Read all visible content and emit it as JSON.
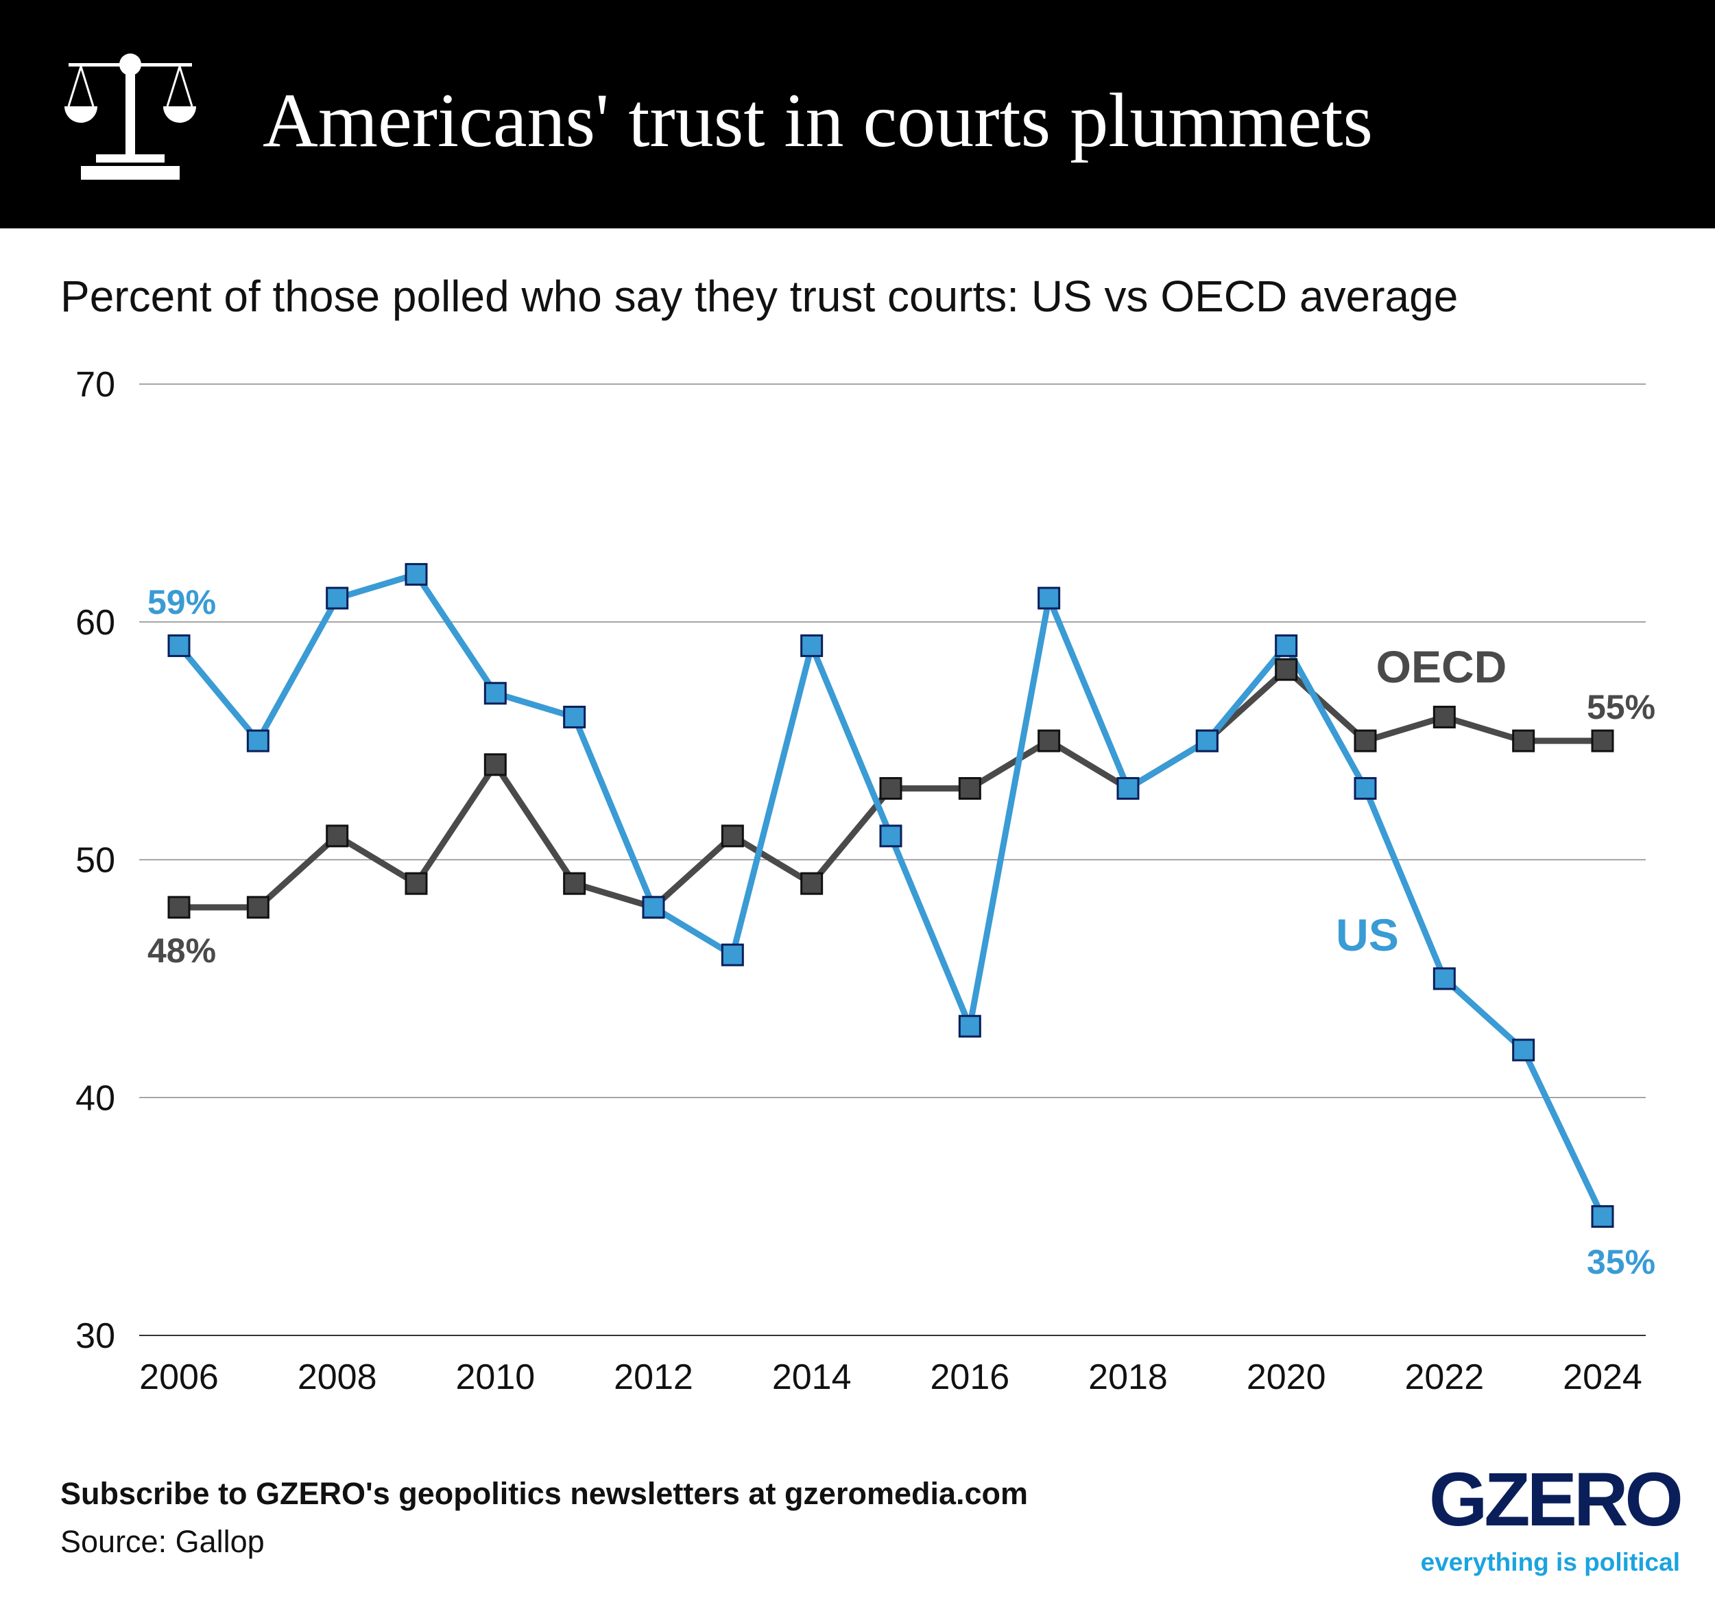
{
  "header": {
    "title": "Americans' trust in courts plummets",
    "icon": "scales-of-justice-icon"
  },
  "subtitle": "Percent of those polled who say they trust courts: US vs OECD average",
  "footer": {
    "subscribe": "Subscribe to GZERO's geopolitics newsletters at gzeromedia.com",
    "source": "Source: Gallop"
  },
  "logo": {
    "name": "GZERO",
    "tagline": "everything is political"
  },
  "chart_data": {
    "type": "line",
    "x": [
      2006,
      2007,
      2008,
      2009,
      2010,
      2011,
      2012,
      2013,
      2014,
      2015,
      2016,
      2017,
      2018,
      2019,
      2020,
      2021,
      2022,
      2023,
      2024
    ],
    "series": [
      {
        "name": "US",
        "color": "#3a9bd5",
        "values": [
          59,
          55,
          61,
          62,
          57,
          56,
          48,
          46,
          59,
          51,
          43,
          61,
          53,
          55,
          59,
          53,
          45,
          42,
          35
        ]
      },
      {
        "name": "OECD",
        "color": "#4a4a4a",
        "values": [
          48,
          48,
          51,
          49,
          54,
          49,
          48,
          51,
          49,
          53,
          53,
          55,
          53,
          55,
          58,
          55,
          56,
          55,
          55
        ]
      }
    ],
    "ylim": [
      30,
      70
    ],
    "yticks": [
      "30",
      "40",
      "50",
      "60",
      "70"
    ],
    "xticks": [
      "2006",
      "2008",
      "2010",
      "2012",
      "2014",
      "2016",
      "2018",
      "2020",
      "2022",
      "2024"
    ],
    "annotations": {
      "us_start": "59%",
      "oecd_start": "48%",
      "oecd_end": "55%",
      "us_end": "35%"
    },
    "grid": true,
    "legend": "inline labels"
  }
}
